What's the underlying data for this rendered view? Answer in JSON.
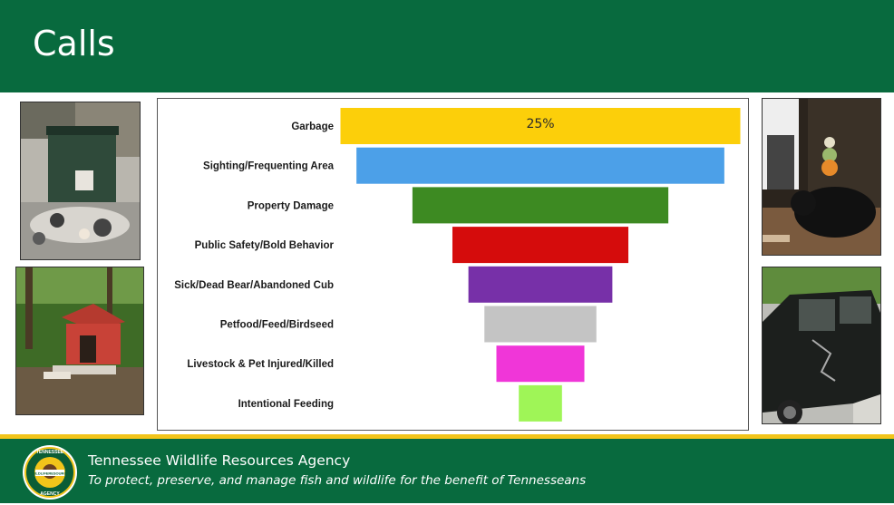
{
  "slide": {
    "title": "Calls"
  },
  "photos": [
    {
      "name": "dumpster-garbage-photo"
    },
    {
      "name": "damaged-shed-photo"
    },
    {
      "name": "bear-on-porch-photo"
    },
    {
      "name": "damaged-car-photo"
    }
  ],
  "chart_data": {
    "type": "bar",
    "orientation": "horizontal-funnel",
    "categories": [
      "Garbage",
      "Sighting/Frequenting Area",
      "Property Damage",
      "Public Safety/Bold Behavior",
      "Sick/Dead Bear/Abandoned Cub",
      "Petfood/Feed/Birdseed",
      "Livestock & Pet Injured/Killed",
      "Intentional Feeding"
    ],
    "values": [
      25,
      23,
      16,
      11,
      9,
      7,
      5.5,
      2.7
    ],
    "colors": [
      "#fccf0a",
      "#4ca0e8",
      "#3d8a22",
      "#d50c0c",
      "#7730a8",
      "#c4c4c4",
      "#f036d8",
      "#9ff557"
    ],
    "data_labels": [
      "25%",
      "",
      "",
      "",
      "",
      "",
      "",
      ""
    ],
    "title": "",
    "xlabel": "",
    "ylabel": "",
    "grid": false,
    "legend": "none"
  },
  "footer": {
    "agency": "Tennessee Wildlife Resources Agency",
    "tagline": "To protect, preserve, and manage fish and wildlife for the benefit of Tennesseans",
    "logo_text": [
      "TENNESSEE",
      "WILDLIFE",
      "RESOURCES",
      "AGENCY"
    ]
  }
}
